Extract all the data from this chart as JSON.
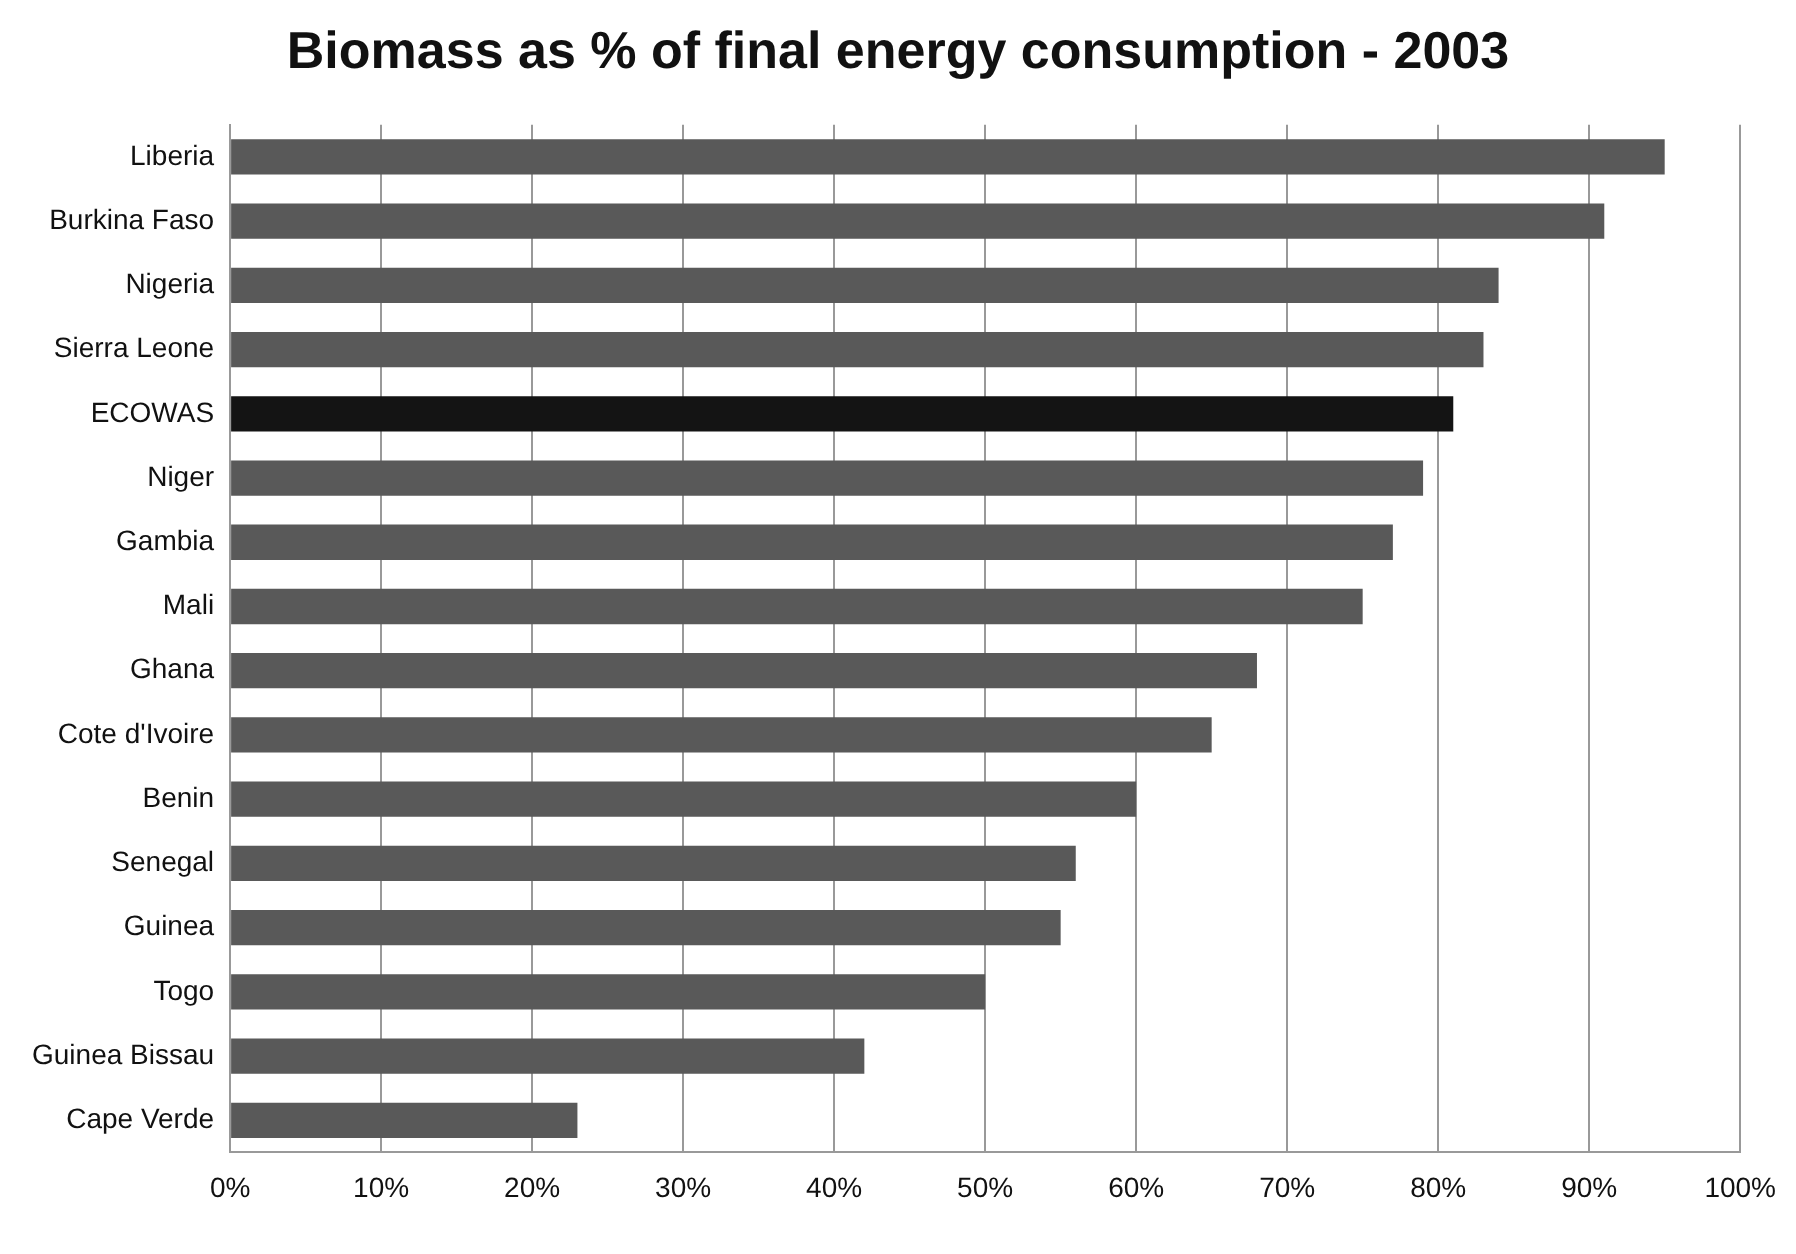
{
  "chart_data": {
    "type": "bar",
    "orientation": "horizontal",
    "title": "Biomass as % of final energy consumption - 2003",
    "categories": [
      "Liberia",
      "Burkina Faso",
      "Nigeria",
      "Sierra Leone",
      "ECOWAS",
      "Niger",
      "Gambia",
      "Mali",
      "Ghana",
      "Cote d'Ivoire",
      "Benin",
      "Senegal",
      "Guinea",
      "Togo",
      "Guinea Bissau",
      "Cape Verde"
    ],
    "values": [
      95,
      91,
      84,
      83,
      81,
      79,
      77,
      75,
      68,
      65,
      60,
      56,
      55,
      50,
      42,
      23
    ],
    "colors": [
      "#595959",
      "#595959",
      "#595959",
      "#595959",
      "#141414",
      "#595959",
      "#595959",
      "#595959",
      "#595959",
      "#595959",
      "#595959",
      "#595959",
      "#595959",
      "#595959",
      "#595959",
      "#595959"
    ],
    "xlim": [
      0,
      100
    ],
    "xticks": [
      {
        "value": 0,
        "label": "0%"
      },
      {
        "value": 10,
        "label": "10%"
      },
      {
        "value": 20,
        "label": "20%"
      },
      {
        "value": 30,
        "label": "30%"
      },
      {
        "value": 40,
        "label": "40%"
      },
      {
        "value": 50,
        "label": "50%"
      },
      {
        "value": 60,
        "label": "60%"
      },
      {
        "value": 70,
        "label": "70%"
      },
      {
        "value": 80,
        "label": "80%"
      },
      {
        "value": 90,
        "label": "90%"
      },
      {
        "value": 100,
        "label": "100%"
      }
    ],
    "grid": "x",
    "legend": false
  }
}
